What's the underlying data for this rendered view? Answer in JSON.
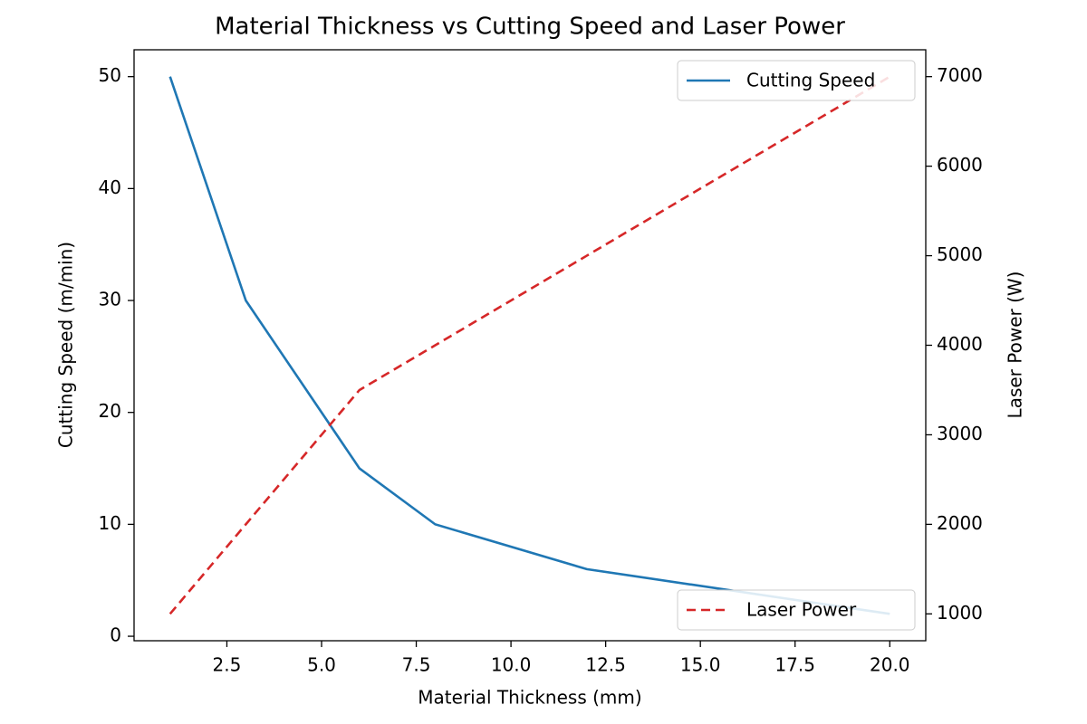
{
  "chart_data": {
    "type": "line",
    "title": "Material Thickness vs Cutting Speed and Laser Power",
    "x_label": "Material Thickness (mm)",
    "y_label": "Cutting Speed (m/min)",
    "y2_label": "Laser Power (W)",
    "x": [
      1,
      3,
      6,
      8,
      12,
      20
    ],
    "series": [
      {
        "name": "Cutting Speed",
        "color": "#1f77b4",
        "axis": "y",
        "dash": "solid",
        "legend_loc": "upper right",
        "values": [
          50,
          30,
          15,
          10,
          6,
          2
        ]
      },
      {
        "name": "Laser Power",
        "color": "#d62728",
        "axis": "y2",
        "dash": "dashed",
        "legend_loc": "lower right",
        "values": [
          1000,
          2000,
          3500,
          4000,
          5000,
          7000
        ]
      }
    ],
    "xlim": [
      0.05,
      20.95
    ],
    "xticks": [
      2.5,
      {
        "value": 5,
        "label": "5.0"
      },
      7.5,
      {
        "value": 10,
        "label": "10.0"
      },
      12.5,
      {
        "value": 15,
        "label": "15.0"
      },
      17.5,
      {
        "value": 20,
        "label": "20.0"
      }
    ],
    "ylim": [
      -0.4,
      52.4
    ],
    "yticks": [
      0,
      10,
      20,
      30,
      40,
      50
    ],
    "y2lim": [
      700,
      7300
    ],
    "y2ticks": [
      1000,
      2000,
      3000,
      4000,
      5000,
      6000,
      7000
    ],
    "y_color": "#1f77b4",
    "y2_color": "#d62728"
  }
}
